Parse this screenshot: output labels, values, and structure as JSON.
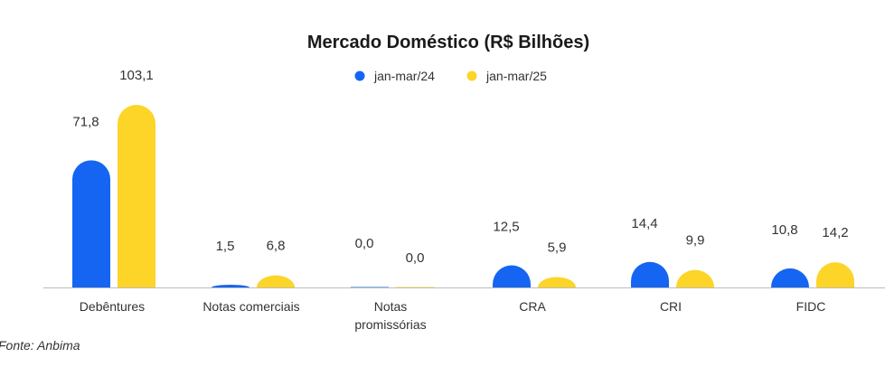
{
  "chart_data": {
    "type": "bar",
    "title": "Mercado Doméstico (R$ Bilhões)",
    "categories": [
      [
        "Debêntures"
      ],
      [
        "Notas comerciais"
      ],
      [
        "Notas",
        "promissórias"
      ],
      [
        "CRA"
      ],
      [
        "CRI"
      ],
      [
        "FIDC"
      ]
    ],
    "series": [
      {
        "name": "jan-mar/24",
        "color": "#1565f2",
        "values": [
          71.8,
          1.5,
          0.0,
          12.5,
          14.4,
          10.8
        ],
        "labels": [
          "71,8",
          "1,5",
          "0,0",
          "12,5",
          "14,4",
          "10,8"
        ]
      },
      {
        "name": "jan-mar/25",
        "color": "#fdd428",
        "values": [
          103.1,
          6.8,
          0.0,
          5.9,
          9.9,
          14.2
        ],
        "labels": [
          "103,1",
          "6,8",
          "0,0",
          "5,9",
          "9,9",
          "14,2"
        ]
      }
    ],
    "ylim": [
      0,
      103.1
    ],
    "grid": false,
    "legend_position": "top-center"
  },
  "source": "Fonte: Anbima"
}
